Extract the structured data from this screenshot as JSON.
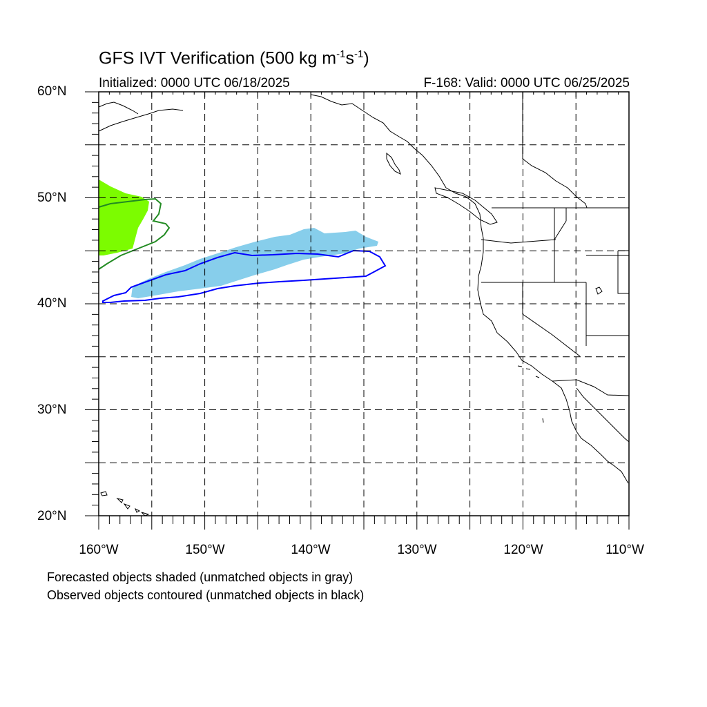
{
  "header": {
    "title_main": "GFS IVT Verification (500 kg m",
    "title_exp1": "-1",
    "title_mid": "s",
    "title_exp2": "-1",
    "title_end": ")",
    "initialized": "Initialized: 0000 UTC 06/18/2025",
    "valid": "F-168: Valid: 0000 UTC 06/25/2025"
  },
  "axes": {
    "lat_labels": [
      "60°N",
      "50°N",
      "40°N",
      "30°N",
      "20°N"
    ],
    "lon_labels": [
      "160°W",
      "150°W",
      "140°W",
      "130°W",
      "120°W",
      "110°W"
    ],
    "lat_range": [
      20,
      60
    ],
    "lon_range": [
      -160,
      -110
    ],
    "grid_interval_deg": 5,
    "grid": "dashed"
  },
  "legend": {
    "line1": "Forecasted objects shaded (unmatched objects in gray)",
    "line2": "Observed objects contoured (unmatched objects in black)"
  },
  "colors": {
    "forecast_matched_1": "#7cfc00",
    "forecast_matched_2": "#87ceeb",
    "observed_matched_1": "#228b22",
    "observed_matched_2": "#0000ff",
    "coastline": "#000000"
  }
}
